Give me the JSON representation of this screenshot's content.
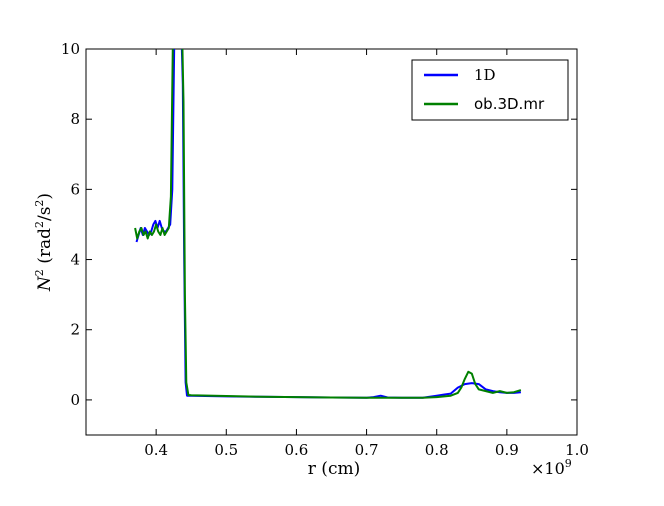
{
  "chart_data": {
    "type": "line",
    "xlabel": "r (cm)",
    "ylabel_main": "N",
    "ylabel_sup": "2",
    "ylabel_unit_open": " (rad",
    "ylabel_unit_sup1": "2",
    "ylabel_unit_mid": "/s",
    "ylabel_unit_sup2": "2",
    "ylabel_unit_close": ")",
    "x_multiplier_base": "×10",
    "x_multiplier_exp": "9",
    "xlim": [
      0.3,
      1.0
    ],
    "ylim": [
      -1,
      10
    ],
    "x_ticks": [
      0.4,
      0.5,
      0.6,
      0.7,
      0.8,
      0.9,
      1.0
    ],
    "x_tick_labels": [
      "0.4",
      "0.5",
      "0.6",
      "0.7",
      "0.8",
      "0.9",
      "1.0"
    ],
    "y_ticks": [
      0,
      2,
      4,
      6,
      8,
      10
    ],
    "y_tick_labels": [
      "0",
      "2",
      "4",
      "6",
      "8",
      "10"
    ],
    "legend_position": "top-right",
    "series": [
      {
        "name": "1D",
        "color": "#0000ff",
        "x": [
          0.372,
          0.375,
          0.378,
          0.381,
          0.384,
          0.387,
          0.39,
          0.393,
          0.396,
          0.399,
          0.402,
          0.405,
          0.408,
          0.411,
          0.414,
          0.417,
          0.42,
          0.423,
          0.426,
          0.429,
          0.432,
          0.434,
          0.436,
          0.438,
          0.44,
          0.442,
          0.444,
          0.447,
          0.45,
          0.5,
          0.55,
          0.6,
          0.65,
          0.7,
          0.71,
          0.72,
          0.73,
          0.75,
          0.78,
          0.8,
          0.81,
          0.82,
          0.83,
          0.84,
          0.85,
          0.86,
          0.87,
          0.88,
          0.89,
          0.9,
          0.91,
          0.92
        ],
        "y": [
          4.5,
          4.7,
          4.9,
          4.7,
          4.9,
          4.8,
          4.7,
          4.8,
          5.0,
          5.1,
          4.9,
          5.1,
          4.9,
          4.8,
          4.8,
          4.9,
          5.0,
          6.0,
          10.5,
          10.5,
          10.5,
          10.5,
          10.5,
          9.0,
          4.0,
          0.5,
          0.12,
          0.12,
          0.12,
          0.1,
          0.09,
          0.08,
          0.07,
          0.06,
          0.08,
          0.12,
          0.07,
          0.06,
          0.06,
          0.12,
          0.15,
          0.18,
          0.35,
          0.45,
          0.48,
          0.45,
          0.3,
          0.25,
          0.22,
          0.2,
          0.2,
          0.22
        ]
      },
      {
        "name": "ob.3D.mr",
        "color": "#008000",
        "x": [
          0.37,
          0.373,
          0.376,
          0.379,
          0.382,
          0.385,
          0.388,
          0.391,
          0.394,
          0.397,
          0.4,
          0.403,
          0.406,
          0.409,
          0.412,
          0.415,
          0.418,
          0.421,
          0.424,
          0.427,
          0.43,
          0.432,
          0.435,
          0.437,
          0.439,
          0.441,
          0.443,
          0.446,
          0.45,
          0.5,
          0.55,
          0.6,
          0.65,
          0.7,
          0.75,
          0.78,
          0.8,
          0.82,
          0.83,
          0.835,
          0.84,
          0.845,
          0.85,
          0.855,
          0.86,
          0.87,
          0.88,
          0.89,
          0.9,
          0.91,
          0.92
        ],
        "y": [
          4.9,
          4.6,
          4.8,
          4.9,
          4.7,
          4.8,
          4.6,
          4.8,
          4.7,
          4.8,
          5.0,
          4.8,
          4.7,
          4.9,
          4.7,
          4.8,
          4.9,
          5.8,
          10.5,
          10.5,
          10.5,
          10.5,
          10.5,
          10.5,
          8.5,
          3.0,
          0.5,
          0.14,
          0.13,
          0.11,
          0.09,
          0.08,
          0.07,
          0.06,
          0.06,
          0.06,
          0.08,
          0.12,
          0.2,
          0.35,
          0.6,
          0.8,
          0.75,
          0.45,
          0.3,
          0.25,
          0.2,
          0.25,
          0.2,
          0.22,
          0.28
        ]
      }
    ]
  }
}
